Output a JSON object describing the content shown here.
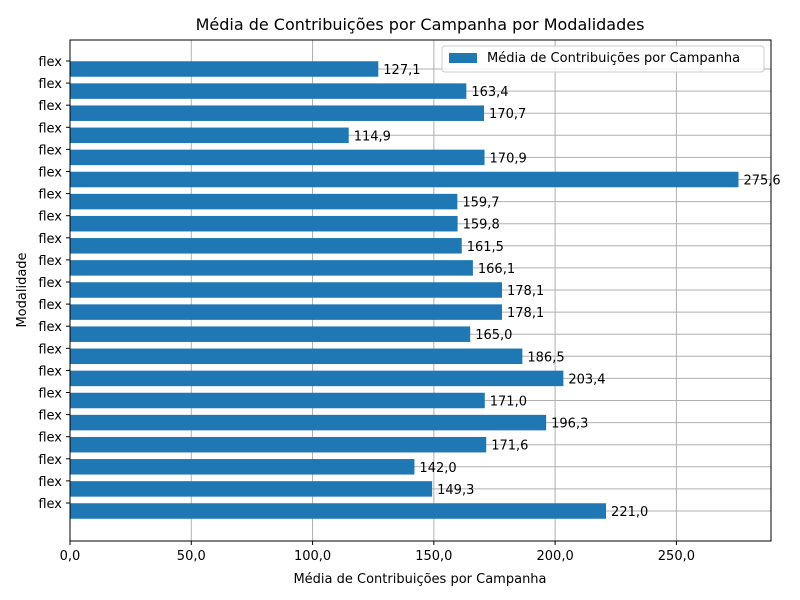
{
  "chart_data": {
    "type": "bar",
    "orientation": "horizontal",
    "title": "Média de Contribuições por Campanha por Modalidades",
    "xlabel": "Média de Contribuições por Campanha",
    "ylabel": "Modalidade",
    "xlim": [
      0,
      289
    ],
    "xticks": [
      0,
      50,
      100,
      150,
      200,
      250
    ],
    "xtick_labels": [
      "0,0",
      "50,0",
      "100,0",
      "150,0",
      "200,0",
      "250,0"
    ],
    "grid": true,
    "legend_position": "top-right",
    "bar_color": "#1f77b4",
    "series": [
      {
        "name": "Média de Contribuições por Campanha",
        "values": [
          221.0,
          149.3,
          142.0,
          171.6,
          196.3,
          171.0,
          203.4,
          186.5,
          165.0,
          178.1,
          178.1,
          166.1,
          161.5,
          159.8,
          159.7,
          275.6,
          170.9,
          114.9,
          170.7,
          163.4,
          127.1
        ],
        "labels": [
          "221,0",
          "149,3",
          "142,0",
          "171,6",
          "196,3",
          "171,0",
          "203,4",
          "186,5",
          "165,0",
          "178,1",
          "178,1",
          "166,1",
          "161,5",
          "159,8",
          "159,7",
          "275,6",
          "170,9",
          "114,9",
          "170,7",
          "163,4",
          "127,1"
        ]
      }
    ],
    "categories": [
      "flex",
      "flex",
      "flex",
      "flex",
      "flex",
      "flex",
      "flex",
      "flex",
      "flex",
      "flex",
      "flex",
      "flex",
      "flex",
      "flex",
      "flex",
      "flex",
      "flex",
      "flex",
      "flex",
      "flex",
      "flex"
    ]
  }
}
